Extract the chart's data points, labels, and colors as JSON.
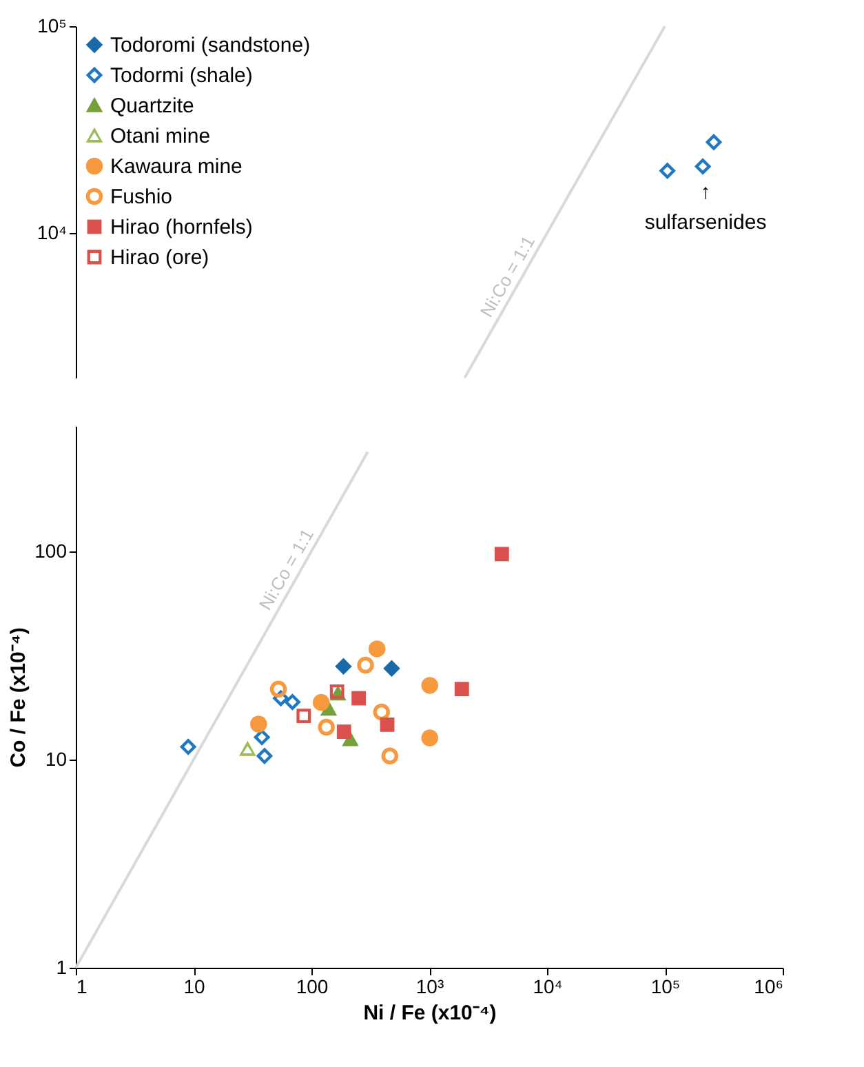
{
  "chart_data": [
    {
      "type": "scatter",
      "xlim": [
        1,
        1000000
      ],
      "ylim": [
        2000,
        100000
      ],
      "yticks": [
        {
          "value": 10000,
          "label": "10⁴"
        },
        {
          "value": 100000,
          "label": "10⁵"
        }
      ],
      "log": "xy",
      "tick_labels": "y",
      "legend": "top left",
      "grid": false,
      "series": [
        {
          "name": "Todoromi (sandstone)",
          "color": "#1a6aa8",
          "marker": "diamond"
        },
        {
          "name": "Todormi (shale)",
          "color": "#1f78c1",
          "marker": "diamond_open",
          "x": [
            105000,
            210000,
            260000
          ],
          "values": [
            20000,
            21000,
            27500
          ]
        },
        {
          "name": "Quartzite",
          "color": "#76a03c",
          "marker": "triangle"
        },
        {
          "name": "Otani mine",
          "color": "#9bbb59",
          "marker": "triangle_open"
        },
        {
          "name": "Kawaura mine",
          "color": "#f7993f",
          "marker": "circle"
        },
        {
          "name": "Fushio",
          "color": "#f7993f",
          "marker": "circle_open"
        },
        {
          "name": "Hirao (hornfels)",
          "color": "#d9504c",
          "marker": "square"
        },
        {
          "name": "Hirao (ore)",
          "color": "#d9504c",
          "marker": "square_open"
        },
        {
          "name": "Ni:Co = 1:1",
          "type": "line",
          "color": "#d9d9d9",
          "x": [
            2000,
            100000
          ],
          "values": [
            2000,
            100000
          ]
        }
      ],
      "annotations": [
        "↑",
        "sulfarsenides"
      ]
    },
    {
      "type": "scatter",
      "xlabel": "Ni / Fe (x10⁻⁴)",
      "ylabel": "Co / Fe (x10⁻⁴)",
      "xlim": [
        1,
        1000000
      ],
      "ylim": [
        1,
        400
      ],
      "xticks": [
        1,
        10,
        100,
        {
          "value": 1000,
          "label": "10³"
        },
        {
          "value": 10000,
          "label": "10⁴"
        },
        {
          "value": 100000,
          "label": "10⁵"
        },
        {
          "value": 1000000,
          "label": "10⁶"
        }
      ],
      "yticks": [
        1,
        10,
        100
      ],
      "log": "xy",
      "legend": false,
      "grid": false,
      "series": [
        {
          "color": "#1a6aa8",
          "marker": "diamond",
          "x": [
            187,
            480
          ],
          "values": [
            28,
            27.4
          ]
        },
        {
          "color": "#1f78c1",
          "marker": "diamond_open",
          "x": [
            9,
            38,
            40,
            55,
            69
          ],
          "values": [
            11.5,
            12.8,
            10.4,
            19.7,
            18.9
          ]
        },
        {
          "color": "#76a03c",
          "marker": "triangle",
          "x": [
            140,
            214,
            168
          ],
          "values": [
            17.5,
            12.5,
            20.7
          ]
        },
        {
          "color": "#9bbb59",
          "marker": "triangle_open",
          "x": [
            28.7
          ],
          "values": [
            11.2
          ]
        },
        {
          "color": "#f7993f",
          "marker": "circle",
          "x": [
            35.6,
            121,
            360,
            1010,
            1010
          ],
          "values": [
            14.8,
            18.8,
            34,
            22.7,
            12.7
          ]
        },
        {
          "color": "#f7993f",
          "marker": "circle_open",
          "x": [
            52.5,
            288,
            134,
            394,
            463
          ],
          "values": [
            21.8,
            28.4,
            14.3,
            16.9,
            10.4
          ]
        },
        {
          "color": "#d9504c",
          "marker": "square",
          "x": [
            252,
            189,
            440,
            1890,
            4130
          ],
          "values": [
            19.7,
            13.6,
            14.7,
            21.8,
            97
          ]
        },
        {
          "color": "#d9504c",
          "marker": "square_open",
          "x": [
            86,
            165
          ],
          "values": [
            16.2,
            21.2
          ]
        },
        {
          "name": "Ni:Co = 1:1",
          "type": "line",
          "color": "#d9d9d9",
          "x": [
            1,
            300
          ],
          "values": [
            1,
            300
          ]
        }
      ]
    }
  ]
}
